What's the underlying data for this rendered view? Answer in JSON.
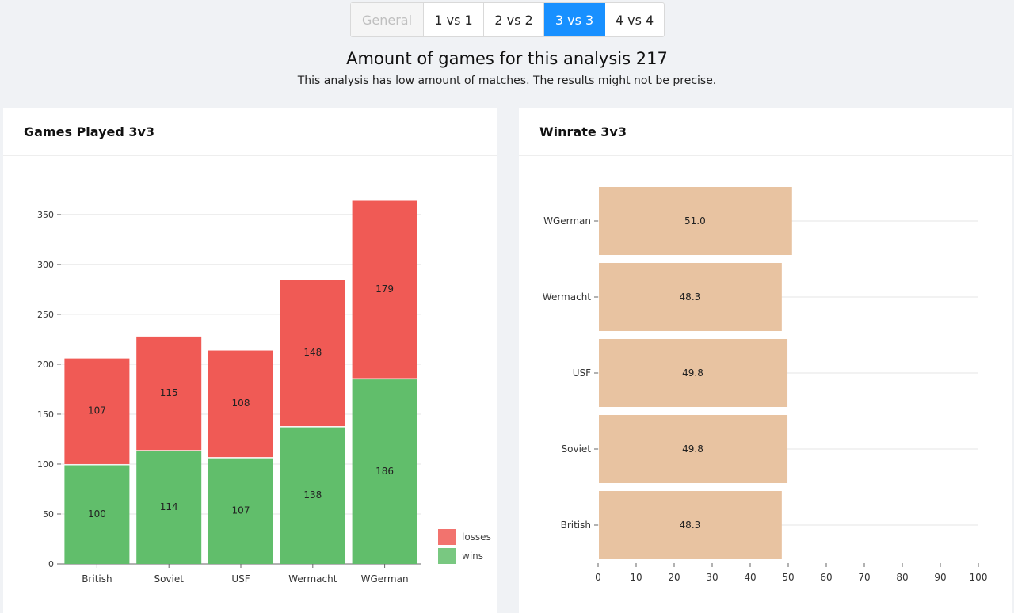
{
  "tabs": [
    {
      "label": "General",
      "state": "disabled"
    },
    {
      "label": "1 vs 1",
      "state": "normal"
    },
    {
      "label": "2 vs 2",
      "state": "normal"
    },
    {
      "label": "3 vs 3",
      "state": "active"
    },
    {
      "label": "4 vs 4",
      "state": "normal"
    }
  ],
  "header": {
    "title": "Amount of games for this analysis 217",
    "subtitle": "This analysis has low amount of matches. The results might not be precise."
  },
  "cards": {
    "games_title": "Games Played 3v3",
    "winrate_title": "Winrate 3v3"
  },
  "colors": {
    "active_tab": "#1890ff",
    "wins": "#61be6b",
    "losses": "#f05a55",
    "winrate_bar": "#e8c3a1"
  },
  "chart_data": [
    {
      "type": "bar",
      "stacked": true,
      "title": "Games Played 3v3",
      "categories": [
        "British",
        "Soviet",
        "USF",
        "Wermacht",
        "WGerman"
      ],
      "series": [
        {
          "name": "wins",
          "values": [
            100,
            114,
            107,
            138,
            186
          ]
        },
        {
          "name": "losses",
          "values": [
            107,
            115,
            108,
            148,
            179
          ]
        }
      ],
      "ylim": [
        0,
        365
      ],
      "yticks": [
        0,
        50,
        100,
        150,
        200,
        250,
        300,
        350
      ],
      "legend": "bottom-right",
      "grid": true
    },
    {
      "type": "bar",
      "orientation": "horizontal",
      "title": "Winrate 3v3",
      "categories": [
        "WGerman",
        "Wermacht",
        "USF",
        "Soviet",
        "British"
      ],
      "values": [
        51.0,
        48.3,
        49.8,
        49.8,
        48.3
      ],
      "xlim": [
        0,
        100
      ],
      "xticks": [
        0,
        10,
        20,
        30,
        40,
        50,
        60,
        70,
        80,
        90,
        100
      ],
      "grid": true
    }
  ]
}
